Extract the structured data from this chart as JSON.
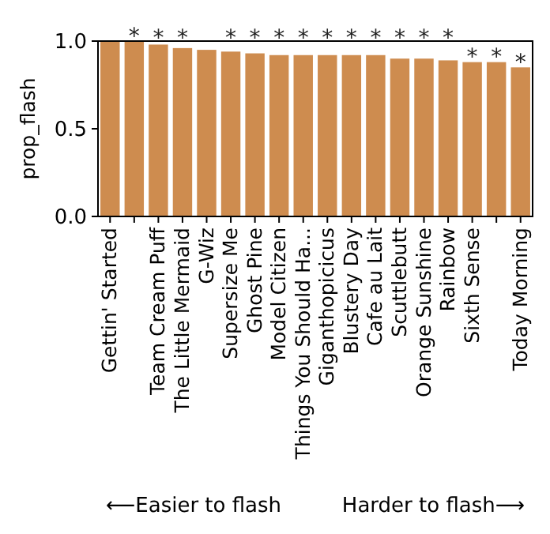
{
  "chart_data": {
    "type": "bar",
    "ylabel": "prop_flash",
    "categories": [
      "Gettin' Started",
      null,
      "Team Cream Puff",
      "The Little Mermaid",
      "G-Wiz",
      "Supersize Me",
      "Ghost Pine",
      "Model Citizen",
      "Things You Should Ha...",
      "Giganthopicicus",
      "Blustery Day",
      "Cafe au Lait",
      "Scuttlebutt",
      "Orange Sunshine",
      "Rainbow",
      "Sixth Sense",
      null,
      "Today Morning"
    ],
    "values": [
      1.0,
      1.0,
      0.98,
      0.96,
      0.95,
      0.94,
      0.93,
      0.92,
      0.92,
      0.92,
      0.92,
      0.92,
      0.9,
      0.9,
      0.89,
      0.88,
      0.88,
      0.85
    ],
    "color": "#ce8c4f",
    "ylim": [
      0,
      1.0
    ],
    "yticks": [
      {
        "value": 0,
        "label": "0.0"
      },
      {
        "value": 0.5,
        "label": "0.5"
      },
      {
        "value": 1.0,
        "label": "1.0"
      }
    ],
    "grid": false,
    "value_labels": [
      null,
      "*",
      "*",
      "*",
      null,
      "*",
      "*",
      "*",
      "*",
      "*",
      "*",
      "*",
      "*",
      "*",
      "*",
      "*",
      "*",
      "*"
    ],
    "annotations": [
      "⟵Easier to flash",
      "Harder to flash⟶"
    ]
  }
}
